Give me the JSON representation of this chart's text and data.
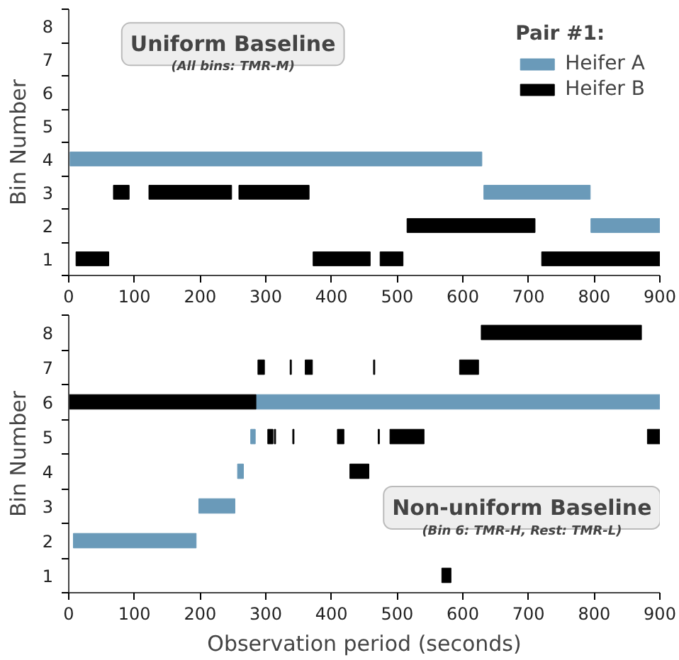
{
  "chart_data": [
    {
      "type": "bar",
      "orientation": "horizontal",
      "title": "Uniform Baseline",
      "subtitle": "(All bins: TMR-M)",
      "ylabel": "Bin Number",
      "categories": [
        "8",
        "7",
        "6",
        "5",
        "4",
        "3",
        "2",
        "1"
      ],
      "xlim": [
        0,
        900
      ],
      "xticks": [
        0,
        100,
        200,
        300,
        400,
        500,
        600,
        700,
        800,
        900
      ],
      "legend": "top right",
      "legend_title": "Pair #1:",
      "series": [
        {
          "name": "Heifer A",
          "color": "#6a9ab9",
          "values": [
            null,
            null,
            null,
            null,
            627,
            162,
            105,
            null
          ],
          "base": [
            null,
            null,
            null,
            null,
            2,
            632,
            795,
            null
          ]
        },
        {
          "name": "Heifer B",
          "color": "#000000",
          "values": [
            null,
            null,
            null,
            null,
            null,
            24,
            195,
            50
          ],
          "base": [
            null,
            null,
            null,
            null,
            null,
            68,
            515,
            11
          ]
        },
        {
          "color": "#000000",
          "values": [
            null,
            null,
            null,
            null,
            null,
            126,
            null,
            87
          ],
          "base": [
            null,
            null,
            null,
            null,
            null,
            122,
            null,
            372
          ]
        },
        {
          "color": "#000000",
          "values": [
            null,
            null,
            null,
            null,
            null,
            107,
            null,
            35
          ],
          "base": [
            null,
            null,
            null,
            null,
            null,
            259,
            null,
            474
          ]
        },
        {
          "color": "#000000",
          "values": [
            null,
            null,
            null,
            null,
            null,
            null,
            null,
            180
          ],
          "base": [
            null,
            null,
            null,
            null,
            null,
            null,
            null,
            720
          ]
        }
      ]
    },
    {
      "type": "bar",
      "orientation": "horizontal",
      "title": "Non-uniform Baseline",
      "subtitle": "(Bin 6: TMR-H, Rest: TMR-L)",
      "xlabel": "Observation period (seconds)",
      "ylabel": "Bin Number",
      "categories": [
        "8",
        "7",
        "6",
        "5",
        "4",
        "3",
        "2",
        "1"
      ],
      "xlim": [
        0,
        900
      ],
      "xticks": [
        0,
        100,
        200,
        300,
        400,
        500,
        600,
        700,
        800,
        900
      ],
      "series": [
        {
          "color": "#6a9ab9",
          "values": [
            null,
            null,
            615,
            7,
            9,
            55,
            187,
            null
          ],
          "base": [
            null,
            null,
            285,
            277,
            257,
            198,
            7,
            null
          ]
        },
        {
          "color": "#000000",
          "values": [
            244,
            10,
            285,
            8,
            29,
            null,
            null,
            14
          ],
          "base": [
            628,
            288,
            0,
            303,
            428,
            null,
            null,
            568
          ]
        },
        {
          "color": "#000000",
          "values": [
            null,
            2,
            null,
            2,
            null,
            null,
            null,
            null
          ],
          "base": [
            null,
            337,
            null,
            313,
            null,
            null,
            null,
            null
          ]
        },
        {
          "color": "#000000",
          "values": [
            null,
            11,
            null,
            2,
            null,
            null,
            null,
            null
          ],
          "base": [
            null,
            360,
            null,
            341,
            null,
            null,
            null,
            null
          ]
        },
        {
          "color": "#000000",
          "values": [
            null,
            2,
            null,
            10,
            null,
            null,
            null,
            null
          ],
          "base": [
            null,
            464,
            null,
            409,
            null,
            null,
            null,
            null
          ]
        },
        {
          "color": "#000000",
          "values": [
            null,
            29,
            null,
            2,
            null,
            null,
            null,
            null
          ],
          "base": [
            null,
            595,
            null,
            471,
            null,
            null,
            null,
            null
          ]
        },
        {
          "color": "#000000",
          "values": [
            null,
            null,
            null,
            52,
            null,
            null,
            null,
            null
          ],
          "base": [
            null,
            null,
            null,
            489,
            null,
            null,
            null,
            null
          ]
        },
        {
          "color": "#000000",
          "values": [
            null,
            null,
            null,
            19,
            null,
            null,
            null,
            null
          ],
          "base": [
            null,
            null,
            null,
            881,
            null,
            null,
            null,
            null
          ]
        }
      ]
    }
  ]
}
